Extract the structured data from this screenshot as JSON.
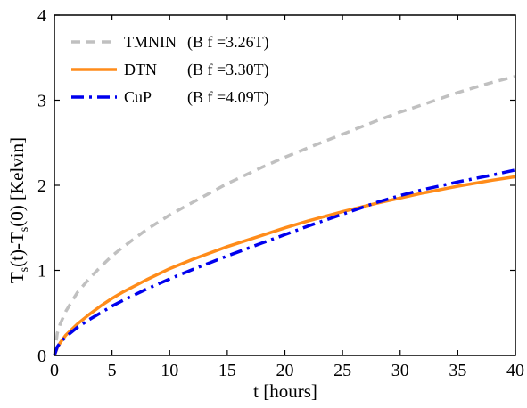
{
  "chart_data": {
    "type": "line",
    "xlabel": "t [hours]",
    "ylabel": {
      "prefix": "T",
      "sub1": "s",
      "mid": "(t)-T",
      "sub2": "s",
      "suffix": "(0) [Kelvin]"
    },
    "xlim": [
      0,
      40
    ],
    "ylim": [
      0,
      4
    ],
    "xticks": [
      0,
      5,
      10,
      15,
      20,
      25,
      30,
      35,
      40
    ],
    "yticks": [
      0,
      1,
      2,
      3,
      4
    ],
    "grid": false,
    "legend_position": "top-left",
    "series": [
      {
        "name": "TMNIN",
        "field": "(B f =3.26T)",
        "color": "#c0c0c0",
        "dash": "dashed",
        "x": [
          0,
          0.25,
          0.5,
          1,
          2,
          3,
          4,
          5,
          6,
          8,
          10,
          12,
          15,
          18,
          20,
          22,
          25,
          28,
          30,
          32,
          35,
          38,
          40
        ],
        "y": [
          0,
          0.26,
          0.37,
          0.52,
          0.74,
          0.9,
          1.04,
          1.17,
          1.28,
          1.48,
          1.65,
          1.8,
          2.02,
          2.21,
          2.33,
          2.44,
          2.6,
          2.76,
          2.86,
          2.95,
          3.09,
          3.21,
          3.28
        ]
      },
      {
        "name": "DTN",
        "field": "(B f =3.30T)",
        "color": "#ff8c1a",
        "dash": "solid",
        "x": [
          0,
          0.25,
          0.5,
          1,
          2,
          3,
          4,
          5,
          6,
          8,
          10,
          12,
          15,
          18,
          20,
          22,
          25,
          28,
          30,
          32,
          35,
          38,
          40
        ],
        "y": [
          0,
          0.09,
          0.15,
          0.24,
          0.37,
          0.48,
          0.58,
          0.67,
          0.75,
          0.89,
          1.02,
          1.13,
          1.28,
          1.41,
          1.5,
          1.58,
          1.69,
          1.79,
          1.85,
          1.91,
          1.99,
          2.06,
          2.1
        ]
      },
      {
        "name": "CuP",
        "field": "(B f =4.09T)",
        "color": "#0000ee",
        "dash": "dashdot",
        "x": [
          0,
          0.25,
          0.5,
          1,
          2,
          3,
          4,
          5,
          6,
          8,
          10,
          12,
          15,
          18,
          20,
          22,
          25,
          28,
          30,
          32,
          35,
          38,
          40
        ],
        "y": [
          0,
          0.1,
          0.15,
          0.22,
          0.33,
          0.42,
          0.5,
          0.58,
          0.65,
          0.78,
          0.9,
          1.01,
          1.17,
          1.32,
          1.42,
          1.52,
          1.66,
          1.8,
          1.88,
          1.95,
          2.04,
          2.12,
          2.18
        ]
      }
    ]
  }
}
